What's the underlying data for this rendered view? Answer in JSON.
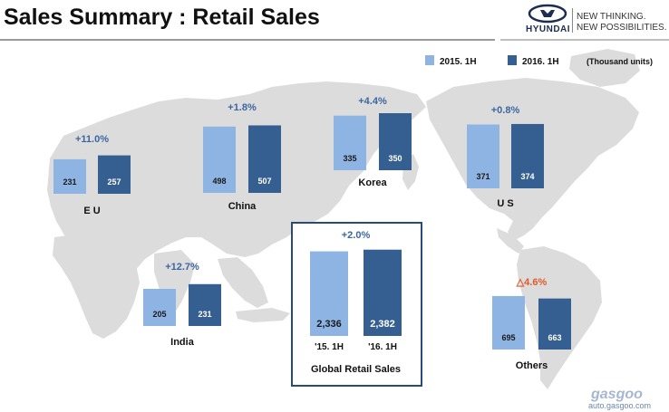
{
  "header": {
    "title": "Sales Summary : Retail Sales",
    "brand": "HYUNDAI",
    "tagline_1": "NEW THINKING.",
    "tagline_2": "NEW POSSIBILITIES."
  },
  "legend": {
    "unit": "(Thousand units)"
  },
  "colors": {
    "light": "#8eb4e3",
    "dark": "#355f91",
    "change_positive": "#3b67a0",
    "change_negative": "#e05a2a",
    "map": "#d9d9d9"
  },
  "watermark": {
    "brand": "gasgoo",
    "url": "auto.gasgoo.com"
  },
  "chart_data": {
    "type": "bar",
    "series_names": [
      "2015. 1H",
      "2016. 1H"
    ],
    "unit": "(Thousand units)",
    "regions": [
      {
        "name": "E U",
        "change": "+11.0%",
        "values": [
          231,
          257
        ]
      },
      {
        "name": "China",
        "change": "+1.8%",
        "values": [
          498,
          507
        ]
      },
      {
        "name": "Korea",
        "change": "+4.4%",
        "values": [
          335,
          350
        ]
      },
      {
        "name": "U S",
        "change": "+0.8%",
        "values": [
          371,
          374
        ]
      },
      {
        "name": "India",
        "change": "+12.7%",
        "values": [
          205,
          231
        ]
      },
      {
        "name": "Others",
        "change": "△4.6%",
        "values": [
          695,
          663
        ]
      },
      {
        "name": "Global Retail Sales",
        "change": "+2.0%",
        "values": [
          "2,336",
          "2,382"
        ],
        "categories": [
          "'15. 1H",
          "'16. 1H"
        ]
      }
    ]
  }
}
